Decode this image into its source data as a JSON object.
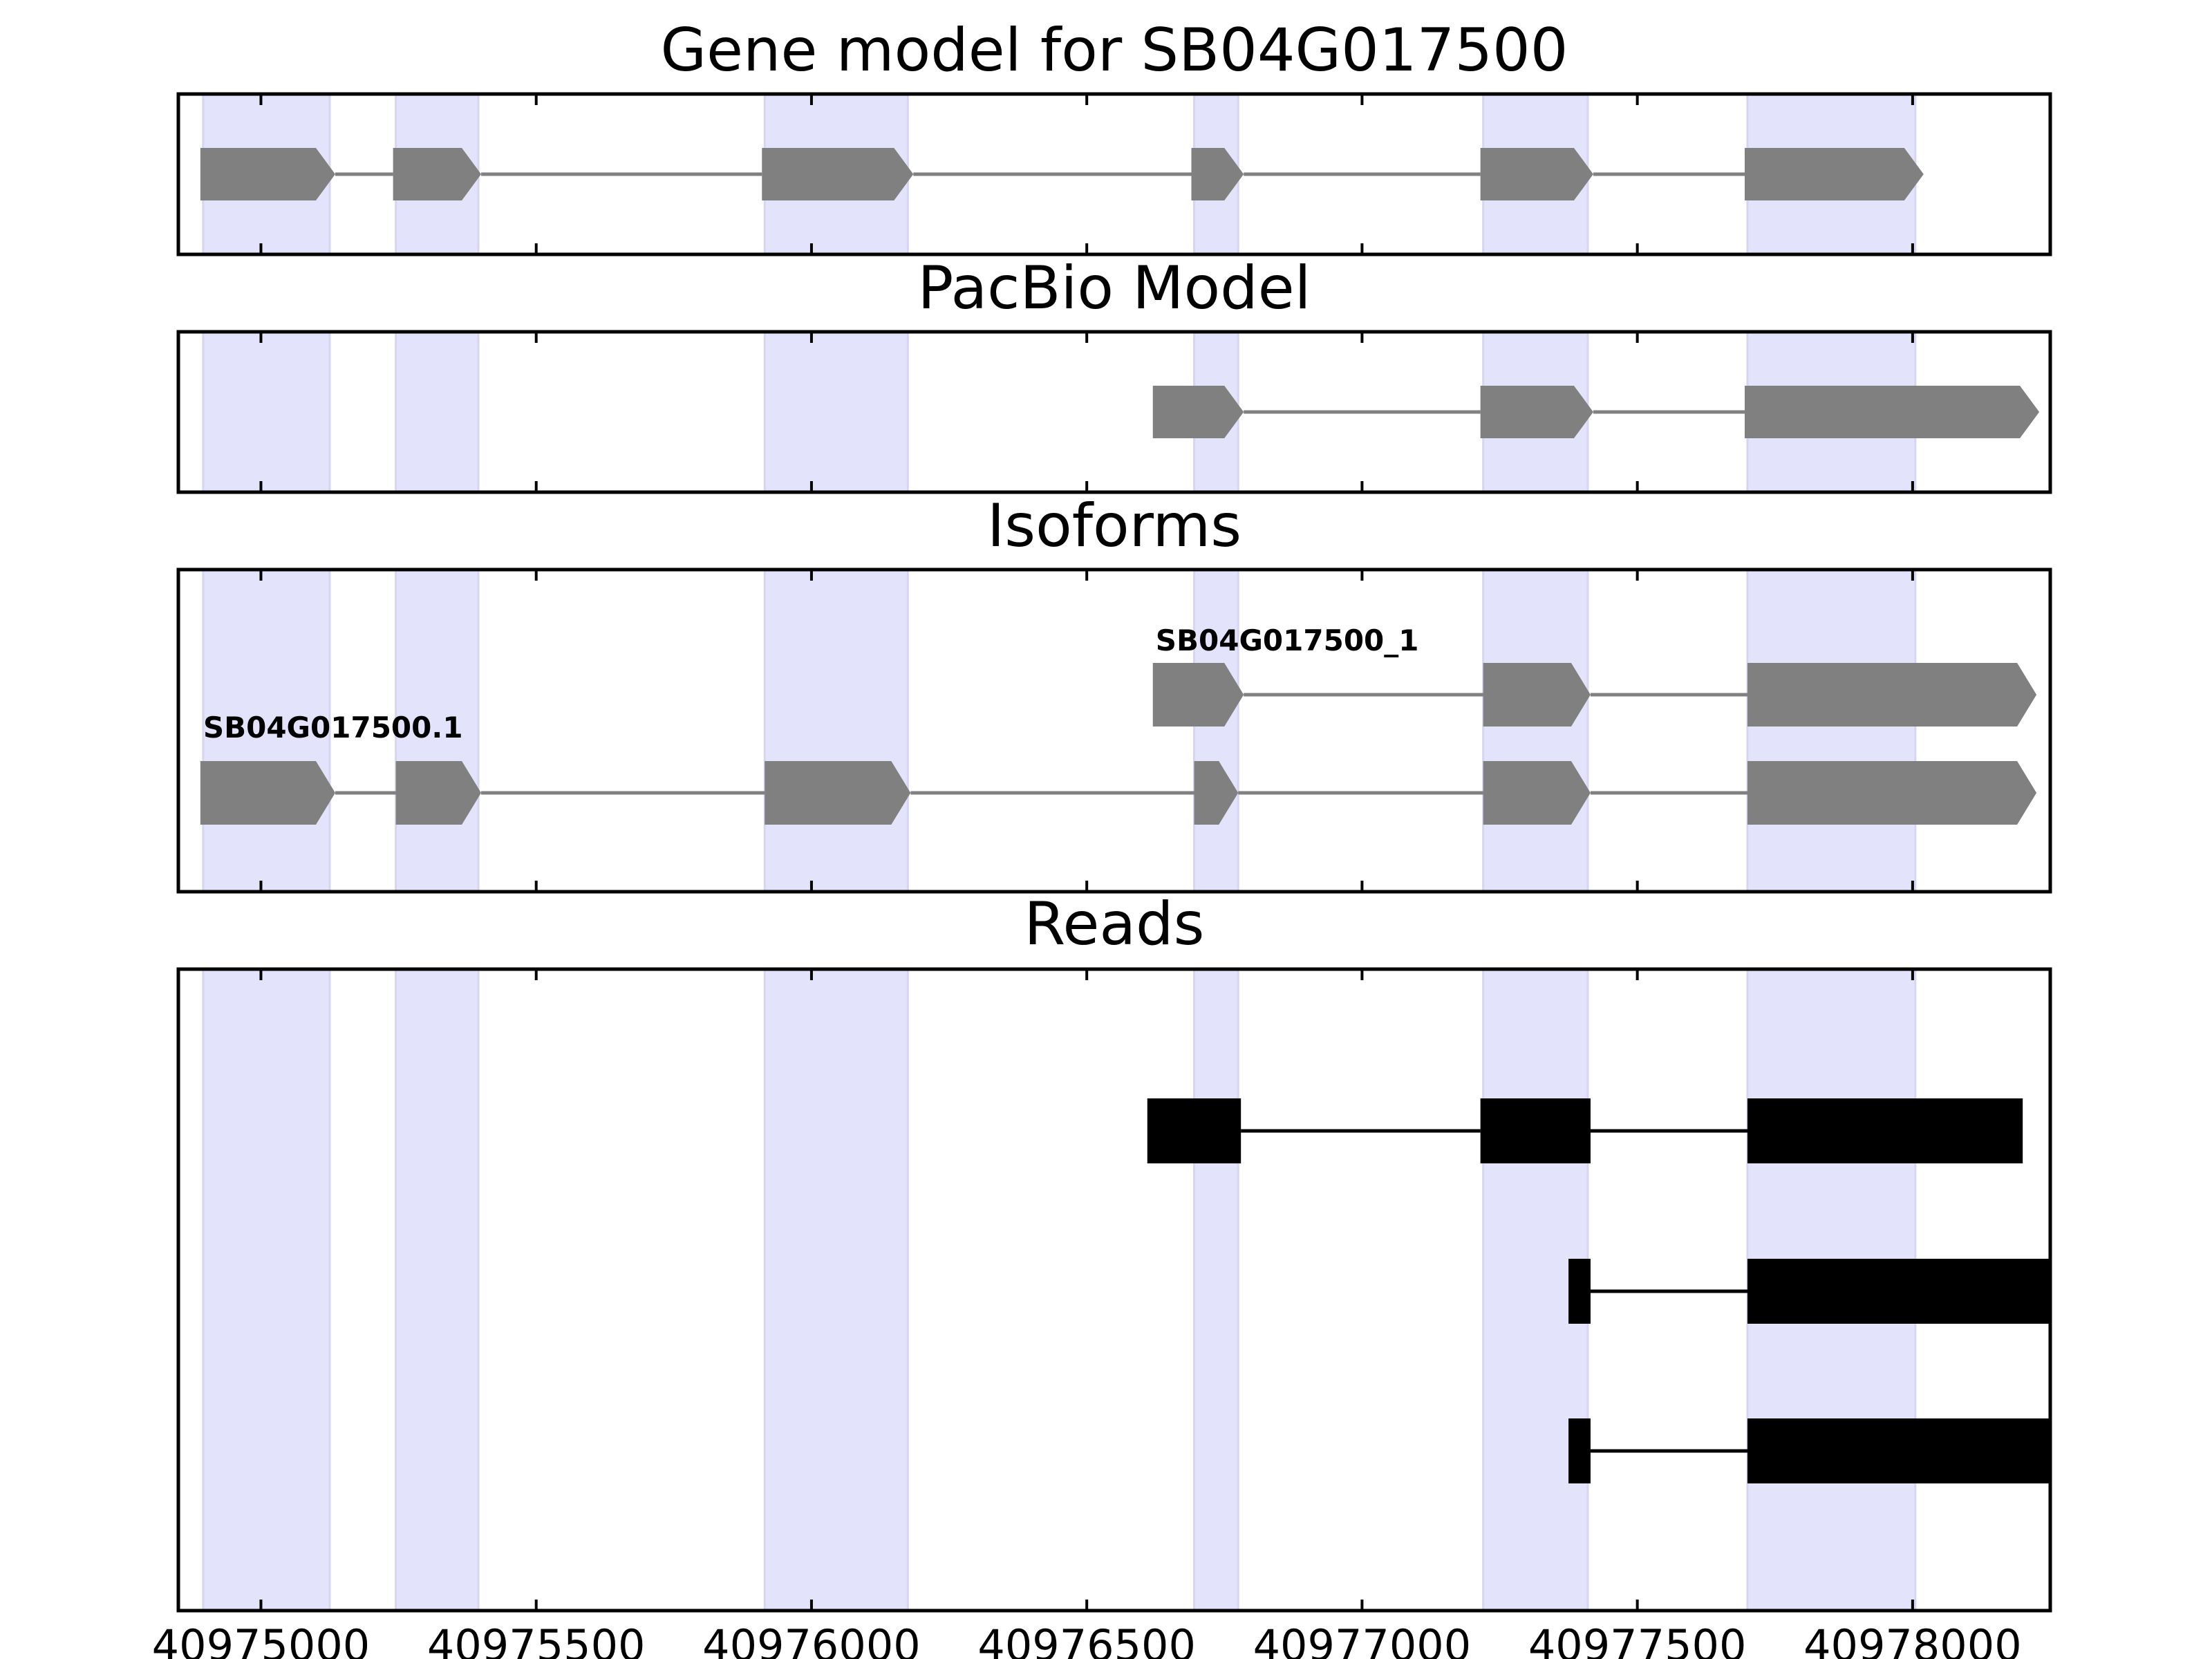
{
  "chart_data": {
    "type": "gene-track",
    "xlim": [
      40974850,
      40978250
    ],
    "xticks": [
      40975000,
      40975500,
      40976000,
      40976500,
      40977000,
      40977500,
      40978000
    ],
    "xtick_labels": [
      "40975000",
      "40975500",
      "40976000",
      "40976500",
      "40977000",
      "40977500",
      "40978000"
    ],
    "exon_bands": [
      [
        40974895,
        40975125
      ],
      [
        40975245,
        40975395
      ],
      [
        40975915,
        40976175
      ],
      [
        40976695,
        40976775
      ],
      [
        40977220,
        40977410
      ],
      [
        40977700,
        40978005
      ]
    ],
    "panels": [
      {
        "title": "Gene model for SB04G017500",
        "tracks": [
          {
            "label": "",
            "exons": [
              [
                40974890,
                40975135
              ],
              [
                40975240,
                40975400
              ],
              [
                40975910,
                40976185
              ],
              [
                40976690,
                40976785
              ],
              [
                40977215,
                40977420
              ],
              [
                40977695,
                40978020
              ]
            ]
          }
        ]
      },
      {
        "title": "PacBio Model",
        "tracks": [
          {
            "label": "",
            "exons": [
              [
                40976620,
                40976785
              ],
              [
                40977215,
                40977420
              ],
              [
                40977695,
                40978230
              ]
            ]
          }
        ]
      },
      {
        "title": "Isoforms",
        "tracks": [
          {
            "label": "SB04G017500_1",
            "exons": [
              [
                40976620,
                40976785
              ],
              [
                40977220,
                40977415
              ],
              [
                40977700,
                40978225
              ]
            ]
          },
          {
            "label": "SB04G017500.1",
            "exons": [
              [
                40974890,
                40975135
              ],
              [
                40975245,
                40975400
              ],
              [
                40975915,
                40976180
              ],
              [
                40976695,
                40976775
              ],
              [
                40977220,
                40977415
              ],
              [
                40977700,
                40978225
              ]
            ]
          }
        ]
      },
      {
        "title": "Reads",
        "tracks": [
          {
            "label": "",
            "exons": [
              [
                40976610,
                40976780
              ],
              [
                40977215,
                40977415
              ],
              [
                40977700,
                40978200
              ]
            ]
          },
          {
            "label": "",
            "exons": [
              [
                40977375,
                40977415
              ],
              [
                40977700,
                40978250
              ]
            ]
          },
          {
            "label": "",
            "exons": [
              [
                40977375,
                40977415
              ],
              [
                40977700,
                40978250
              ]
            ]
          }
        ]
      }
    ]
  }
}
